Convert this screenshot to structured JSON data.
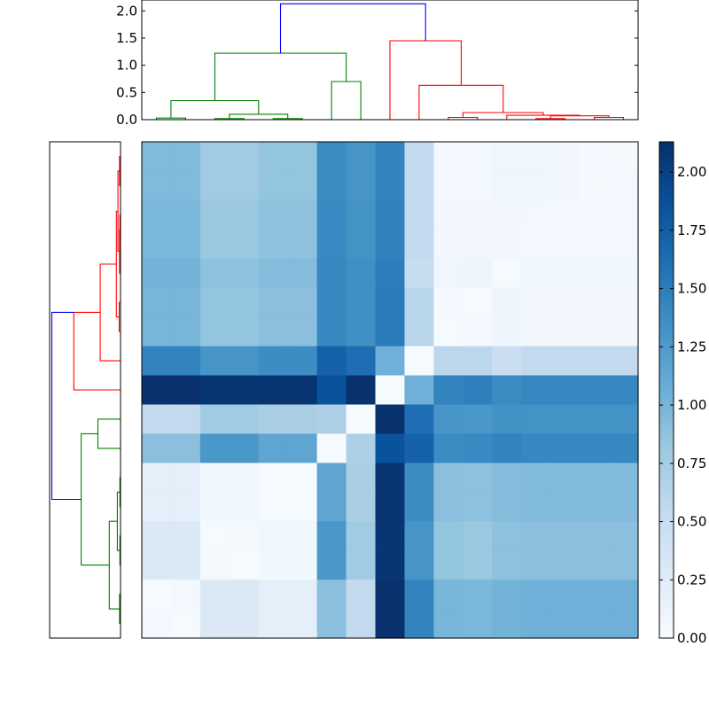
{
  "chart_data": [
    {
      "type": "heatmap",
      "title": "",
      "xlabel": "",
      "ylabel": "",
      "n": 17,
      "tick_labels": "none",
      "colormap": "Blues",
      "cmap_stops": [
        "#f7fbff",
        "#deebf7",
        "#c6dbef",
        "#9ecae1",
        "#6baed6",
        "#4292c6",
        "#2171b5",
        "#08519c",
        "#08306b"
      ],
      "vmin": 0,
      "vmax": 2.13,
      "values": [
        [
          0.95,
          0.95,
          0.78,
          0.78,
          0.85,
          0.85,
          1.38,
          1.3,
          1.45,
          0.55,
          0.05,
          0.05,
          0.08,
          0.08,
          0.06,
          0.04,
          0.03
        ],
        [
          0.95,
          0.95,
          0.78,
          0.78,
          0.85,
          0.85,
          1.38,
          1.3,
          1.45,
          0.55,
          0.05,
          0.05,
          0.08,
          0.08,
          0.06,
          0.03,
          0.04
        ],
        [
          0.98,
          0.98,
          0.82,
          0.82,
          0.88,
          0.88,
          1.4,
          1.32,
          1.47,
          0.55,
          0.06,
          0.06,
          0.06,
          0.05,
          0.04,
          0.04,
          0.04
        ],
        [
          0.98,
          0.98,
          0.82,
          0.82,
          0.88,
          0.88,
          1.4,
          1.32,
          1.47,
          0.55,
          0.06,
          0.06,
          0.06,
          0.04,
          0.05,
          0.04,
          0.04
        ],
        [
          1.02,
          1.02,
          0.88,
          0.88,
          0.93,
          0.93,
          1.42,
          1.35,
          1.5,
          0.52,
          0.08,
          0.1,
          0.02,
          0.07,
          0.07,
          0.07,
          0.07
        ],
        [
          1.0,
          1.0,
          0.85,
          0.85,
          0.9,
          0.9,
          1.41,
          1.35,
          1.52,
          0.62,
          0.04,
          0.02,
          0.1,
          0.06,
          0.06,
          0.06,
          0.06
        ],
        [
          1.0,
          1.0,
          0.85,
          0.85,
          0.9,
          0.9,
          1.41,
          1.35,
          1.52,
          0.62,
          0.02,
          0.04,
          0.1,
          0.06,
          0.06,
          0.06,
          0.06
        ],
        [
          1.45,
          1.45,
          1.3,
          1.3,
          1.37,
          1.37,
          1.72,
          1.62,
          1.05,
          0.02,
          0.6,
          0.6,
          0.48,
          0.55,
          0.55,
          0.55,
          0.55
        ],
        [
          2.12,
          2.12,
          2.08,
          2.08,
          2.1,
          2.1,
          1.85,
          2.12,
          0.02,
          1.05,
          1.45,
          1.48,
          1.38,
          1.42,
          1.42,
          1.42,
          1.42
        ],
        [
          0.55,
          0.55,
          0.78,
          0.78,
          0.72,
          0.72,
          0.7,
          0.02,
          2.12,
          1.62,
          1.3,
          1.28,
          1.33,
          1.32,
          1.32,
          1.32,
          1.32
        ],
        [
          0.9,
          0.9,
          1.28,
          1.28,
          1.15,
          1.15,
          0.02,
          0.7,
          1.85,
          1.72,
          1.38,
          1.4,
          1.45,
          1.42,
          1.42,
          1.42,
          1.42
        ],
        [
          0.2,
          0.2,
          0.07,
          0.07,
          0.02,
          0.02,
          1.15,
          0.72,
          2.1,
          1.37,
          0.9,
          0.88,
          0.92,
          0.95,
          0.95,
          0.95,
          0.95
        ],
        [
          0.2,
          0.2,
          0.07,
          0.07,
          0.02,
          0.02,
          1.15,
          0.72,
          2.1,
          1.37,
          0.9,
          0.88,
          0.92,
          0.95,
          0.95,
          0.95,
          0.95
        ],
        [
          0.3,
          0.3,
          0.02,
          0.03,
          0.07,
          0.07,
          1.28,
          0.78,
          2.08,
          1.3,
          0.85,
          0.82,
          0.88,
          0.9,
          0.9,
          0.9,
          0.9
        ],
        [
          0.3,
          0.3,
          0.03,
          0.02,
          0.07,
          0.07,
          1.28,
          0.78,
          2.08,
          1.3,
          0.85,
          0.82,
          0.88,
          0.9,
          0.9,
          0.9,
          0.9
        ],
        [
          0.02,
          0.05,
          0.3,
          0.3,
          0.2,
          0.2,
          0.9,
          0.55,
          2.12,
          1.45,
          1.0,
          0.98,
          1.02,
          1.05,
          1.05,
          1.05,
          1.05
        ],
        [
          0.05,
          0.02,
          0.3,
          0.3,
          0.2,
          0.2,
          0.9,
          0.55,
          2.12,
          1.45,
          1.0,
          0.98,
          1.02,
          1.05,
          1.05,
          1.05,
          1.05
        ]
      ],
      "colorbar": {
        "ticks": [
          0.0,
          0.25,
          0.5,
          0.75,
          1.0,
          1.25,
          1.5,
          1.75,
          2.0
        ],
        "tick_labels": [
          "0.00",
          "0.25",
          "0.50",
          "0.75",
          "1.00",
          "1.25",
          "1.50",
          "1.75",
          "2.00"
        ]
      }
    },
    {
      "type": "dendrogram",
      "orientation": "top",
      "xlabel": "",
      "ylabel": "",
      "ylim": [
        0,
        2.2
      ],
      "yticks": [
        0.0,
        0.5,
        1.0,
        1.5,
        2.0
      ],
      "ytick_labels": [
        "0.0",
        "0.5",
        "1.0",
        "1.5",
        "2.0"
      ],
      "tick_labels": "none",
      "links": [
        {
          "color": "#008000",
          "x": [
            0.5,
            0.5,
            1.5,
            1.5
          ],
          "y": [
            0.0,
            0.03,
            0.03,
            0.0
          ]
        },
        {
          "color": "#008000",
          "x": [
            2.5,
            2.5,
            3.5,
            3.5
          ],
          "y": [
            0.0,
            0.02,
            0.02,
            0.0
          ]
        },
        {
          "color": "#008000",
          "x": [
            4.5,
            4.5,
            5.5,
            5.5
          ],
          "y": [
            0.0,
            0.02,
            0.02,
            0.0
          ]
        },
        {
          "color": "#008000",
          "x": [
            3.0,
            3.0,
            5.0,
            5.0
          ],
          "y": [
            0.02,
            0.1,
            0.1,
            0.02
          ]
        },
        {
          "color": "#008000",
          "x": [
            1.0,
            1.0,
            4.0,
            4.0
          ],
          "y": [
            0.03,
            0.35,
            0.35,
            0.1
          ]
        },
        {
          "color": "#008000",
          "x": [
            6.5,
            6.5,
            7.5,
            7.5
          ],
          "y": [
            0.0,
            0.7,
            0.7,
            0.0
          ]
        },
        {
          "color": "#008000",
          "x": [
            2.5,
            2.5,
            7.0,
            7.0
          ],
          "y": [
            0.35,
            1.22,
            1.22,
            0.7
          ]
        },
        {
          "color": "#ff0000",
          "x": [
            10.5,
            10.5,
            11.5,
            11.5
          ],
          "y": [
            0.0,
            0.04,
            0.04,
            0.0
          ]
        },
        {
          "color": "#ff0000",
          "x": [
            13.5,
            13.5,
            14.5,
            14.5
          ],
          "y": [
            0.0,
            0.02,
            0.02,
            0.0
          ]
        },
        {
          "color": "#ff0000",
          "x": [
            15.5,
            15.5,
            16.5,
            16.5
          ],
          "y": [
            0.0,
            0.04,
            0.04,
            0.0
          ]
        },
        {
          "color": "#ff0000",
          "x": [
            14.0,
            14.0,
            16.0,
            16.0
          ],
          "y": [
            0.02,
            0.07,
            0.07,
            0.04
          ]
        },
        {
          "color": "#ff0000",
          "x": [
            12.5,
            12.5,
            15.0,
            15.0
          ],
          "y": [
            0.0,
            0.08,
            0.08,
            0.07
          ]
        },
        {
          "color": "#ff0000",
          "x": [
            11.0,
            11.0,
            13.75,
            13.75
          ],
          "y": [
            0.04,
            0.13,
            0.13,
            0.08
          ]
        },
        {
          "color": "#ff0000",
          "x": [
            9.5,
            9.5,
            12.38,
            12.38
          ],
          "y": [
            0.0,
            0.63,
            0.63,
            0.13
          ]
        },
        {
          "color": "#ff0000",
          "x": [
            8.5,
            8.5,
            10.94,
            10.94
          ],
          "y": [
            0.0,
            1.45,
            1.45,
            0.63
          ]
        },
        {
          "color": "#0000ff",
          "x": [
            4.75,
            4.75,
            9.72,
            9.72
          ],
          "y": [
            1.22,
            2.13,
            2.13,
            1.45
          ]
        }
      ]
    },
    {
      "type": "dendrogram",
      "orientation": "left",
      "xlabel": "",
      "ylabel": "",
      "xlim": [
        0,
        2.2
      ],
      "tick_labels": "none",
      "links": [
        {
          "color": "#ff0000",
          "x": [
            0.0,
            0.03,
            0.03,
            0.0
          ],
          "y": [
            0.5,
            0.5,
            1.5,
            1.5
          ]
        },
        {
          "color": "#ff0000",
          "x": [
            0.0,
            0.02,
            0.02,
            0.0
          ],
          "y": [
            2.5,
            2.5,
            3.5,
            3.5
          ]
        },
        {
          "color": "#ff0000",
          "x": [
            0.0,
            0.03,
            0.03,
            0.02
          ],
          "y": [
            4.5,
            4.5,
            3.0,
            3.0
          ]
        },
        {
          "color": "#ff0000",
          "x": [
            0.03,
            0.08,
            0.08,
            0.03
          ],
          "y": [
            1.0,
            1.0,
            3.75,
            3.75
          ]
        },
        {
          "color": "#ff0000",
          "x": [
            0.0,
            0.04,
            0.04,
            0.0
          ],
          "y": [
            5.5,
            5.5,
            6.5,
            6.5
          ]
        },
        {
          "color": "#ff0000",
          "x": [
            0.08,
            0.13,
            0.13,
            0.04
          ],
          "y": [
            2.38,
            2.38,
            6.0,
            6.0
          ]
        },
        {
          "color": "#ff0000",
          "x": [
            0.0,
            0.63,
            0.63,
            0.13
          ],
          "y": [
            7.5,
            7.5,
            4.19,
            4.19
          ]
        },
        {
          "color": "#ff0000",
          "x": [
            0.0,
            1.45,
            1.45,
            0.63
          ],
          "y": [
            8.5,
            8.5,
            5.84,
            5.84
          ]
        },
        {
          "color": "#008000",
          "x": [
            0.0,
            0.7,
            0.7,
            0.0
          ],
          "y": [
            9.5,
            9.5,
            10.5,
            10.5
          ]
        },
        {
          "color": "#008000",
          "x": [
            0.0,
            0.02,
            0.02,
            0.0
          ],
          "y": [
            11.5,
            11.5,
            12.5,
            12.5
          ]
        },
        {
          "color": "#008000",
          "x": [
            0.0,
            0.02,
            0.02,
            0.0
          ],
          "y": [
            13.5,
            13.5,
            14.5,
            14.5
          ]
        },
        {
          "color": "#008000",
          "x": [
            0.02,
            0.1,
            0.1,
            0.02
          ],
          "y": [
            12.0,
            12.0,
            14.0,
            14.0
          ]
        },
        {
          "color": "#008000",
          "x": [
            0.0,
            0.03,
            0.03,
            0.0
          ],
          "y": [
            15.5,
            15.5,
            16.5,
            16.5
          ]
        },
        {
          "color": "#008000",
          "x": [
            0.1,
            0.35,
            0.35,
            0.03
          ],
          "y": [
            13.0,
            13.0,
            16.0,
            16.0
          ]
        },
        {
          "color": "#008000",
          "x": [
            0.7,
            1.22,
            1.22,
            0.35
          ],
          "y": [
            10.0,
            10.0,
            14.5,
            14.5
          ]
        },
        {
          "color": "#0000ff",
          "x": [
            1.45,
            2.13,
            2.13,
            1.22
          ],
          "y": [
            5.84,
            5.84,
            12.25,
            12.25
          ]
        }
      ]
    }
  ]
}
